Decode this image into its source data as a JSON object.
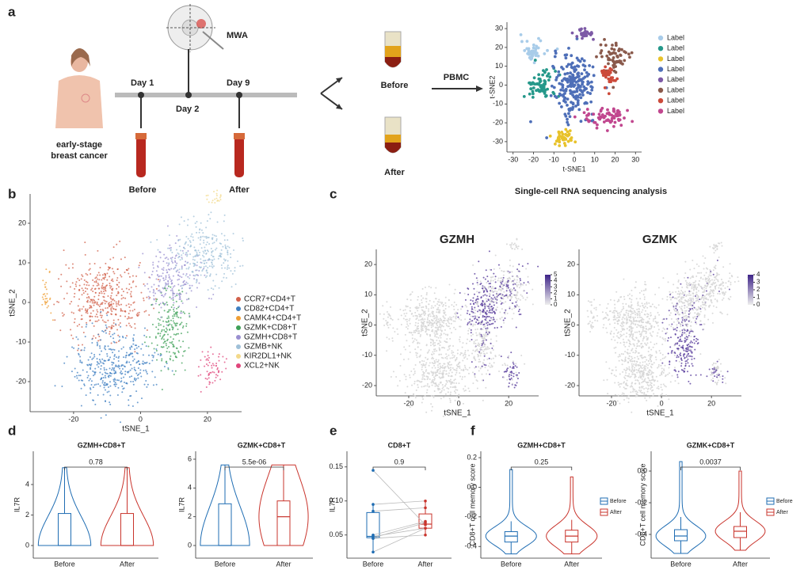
{
  "a": {
    "label": "a",
    "device": "MWA",
    "days": [
      "Day 1",
      "Day 2",
      "Day 9"
    ],
    "patient": [
      "early-stage",
      "breast cancer"
    ],
    "draws": [
      "Before",
      "After"
    ],
    "tubes": [
      "Before",
      "After"
    ],
    "process": "PBMC",
    "tsne": {
      "xlabel": "t-SNE1",
      "ylabel": "t-SNE2",
      "xlim": [
        -33,
        33
      ],
      "ylim": [
        -35.5,
        33.4
      ],
      "xticks": [
        -30,
        -20,
        -10,
        0,
        10,
        20,
        30
      ],
      "yticks": [
        30,
        20,
        10,
        0,
        -10,
        -20,
        -30
      ],
      "legend": [
        {
          "name": "Label",
          "color": "#a8cce9"
        },
        {
          "name": "Label",
          "color": "#25988a"
        },
        {
          "name": "Label",
          "color": "#e8c22a"
        },
        {
          "name": "Label",
          "color": "#4e6fb8"
        },
        {
          "name": "Label",
          "color": "#7d5aa6"
        },
        {
          "name": "Label",
          "color": "#8a5a4c"
        },
        {
          "name": "Label",
          "color": "#cc4a3a"
        },
        {
          "name": "Label",
          "color": "#c1478f"
        }
      ]
    },
    "caption": "Single-cell RNA sequencing analysis"
  },
  "b": {
    "label": "b",
    "xlabel": "tSNE_1",
    "ylabel": "tSNE_2",
    "xlim": [
      -33,
      30.2
    ],
    "ylim": [
      -27.6,
      27.4
    ],
    "xticks": [
      -20,
      0,
      20
    ],
    "yticks": [
      20,
      10,
      0,
      -10,
      -20
    ],
    "legend": [
      {
        "name": "CCR7+CD4+T",
        "color": "#d2614b"
      },
      {
        "name": "CD82+CD4+T",
        "color": "#3f7fc1"
      },
      {
        "name": "CAMK4+CD4+T",
        "color": "#ef9f35"
      },
      {
        "name": "GZMK+CD8+T",
        "color": "#3ea057"
      },
      {
        "name": "GZMH+CD8+T",
        "color": "#9a8fd0"
      },
      {
        "name": "GZMB+NK",
        "color": "#9fc0d8"
      },
      {
        "name": "KIR2DL1+NK",
        "color": "#f3d98a"
      },
      {
        "name": "XCL2+NK",
        "color": "#e0457b"
      }
    ]
  },
  "c": {
    "label": "c",
    "plots": [
      {
        "title": "GZMH",
        "xlabel": "tSNE_1",
        "ylabel": "tSNE_2",
        "xlim": [
          -33,
          32
        ],
        "ylim": [
          -23.4,
          25
        ],
        "xticks": [
          -20,
          0,
          20
        ],
        "yticks": [
          20,
          10,
          0,
          -10,
          -20
        ],
        "colorbar": [
          5,
          4,
          3,
          2,
          1,
          0
        ]
      },
      {
        "title": "GZMK",
        "xlabel": "tSNE_1",
        "ylabel": "tSNE_2",
        "xlim": [
          -33,
          32
        ],
        "ylim": [
          -23.4,
          25
        ],
        "xticks": [
          -20,
          0,
          20
        ],
        "yticks": [
          20,
          10,
          0,
          -10,
          -20
        ],
        "colorbar": [
          4,
          3,
          2,
          1,
          0
        ]
      }
    ]
  },
  "d": {
    "label": "d",
    "plots": [
      {
        "title": "GZMH+CD8+T",
        "ylabel": "IL7R",
        "ylim": [
          -0.83,
          6.18
        ],
        "yticks": [
          0,
          2,
          4
        ],
        "groups": [
          "Before",
          "After"
        ],
        "colors": [
          "#1f6db3",
          "#c9342c"
        ],
        "boxes": [
          {
            "low": 0,
            "q1": 0,
            "median": 0,
            "q3": 2.1,
            "high": 5.1
          },
          {
            "low": 0,
            "q1": 0,
            "median": 0,
            "q3": 2.1,
            "high": 5.1
          }
        ],
        "pvalue": "0.78"
      },
      {
        "title": "GZMK+CD8+T",
        "ylabel": "IL7R",
        "ylim": [
          -0.88,
          6.55
        ],
        "yticks": [
          0,
          2,
          4,
          6
        ],
        "groups": [
          "Before",
          "After"
        ],
        "colors": [
          "#1f6db3",
          "#c9342c"
        ],
        "boxes": [
          {
            "low": 0,
            "q1": 0,
            "median": 0,
            "q3": 2.9,
            "high": 5.6
          },
          {
            "low": 0,
            "q1": 0,
            "median": 2,
            "q3": 3.1,
            "high": 5.6
          }
        ],
        "pvalue": "5.5e-06"
      }
    ]
  },
  "e": {
    "label": "e",
    "title": "CD8+T",
    "ylabel": "IL7R",
    "ylim": [
      0.016,
      0.173
    ],
    "yticks": [
      0.15,
      {
        "value": 0.1,
        "label": "0.10"
      },
      0.05
    ],
    "groups": [
      "Before",
      "After"
    ],
    "colors": [
      "#1f6db3",
      "#c9342c"
    ],
    "boxes": [
      {
        "low": 0.025,
        "q1": 0.046,
        "median": 0.048,
        "q3": 0.083,
        "high": 0.095
      },
      {
        "low": 0.05,
        "q1": 0.06,
        "median": 0.066,
        "q3": 0.081,
        "high": 0.1
      }
    ],
    "before": [
      0.145,
      0.095,
      0.085,
      0.05,
      0.048,
      0.046,
      0.045,
      0.025
    ],
    "after": [
      0.065,
      0.1,
      0.09,
      0.07,
      0.06,
      0.068,
      0.05,
      0.06
    ],
    "pvalue": "0.9"
  },
  "f": {
    "label": "f",
    "plots": [
      {
        "title": "GZMH+CD8+T",
        "ylabel": "CD8+T cell memory score",
        "ylim": [
          -0.479,
          0.243
        ],
        "yticks": [
          0.2,
          {
            "value": 0,
            "label": "0.0"
          },
          -0.2,
          -0.4
        ],
        "groups": [
          "Before",
          "After"
        ],
        "colors": [
          "#1f6db3",
          "#c9342c"
        ],
        "boxes": [
          {
            "low": -0.45,
            "q1": -0.37,
            "median": -0.33,
            "q3": -0.3,
            "high": -0.23,
            "max": 0.12
          },
          {
            "low": -0.45,
            "q1": -0.37,
            "median": -0.33,
            "q3": -0.29,
            "high": -0.22,
            "max": 0.07
          }
        ],
        "pvalue": "0.25",
        "legend": [
          "Before",
          "After"
        ]
      },
      {
        "title": "GZMK+CD8+T",
        "ylabel": "CD8+T cell memory score",
        "ylim": [
          -0.55,
          0.125
        ],
        "yticks": [
          {
            "value": 0,
            "label": "0.0"
          },
          -0.2,
          -0.4
        ],
        "groups": [
          "Before",
          "After"
        ],
        "colors": [
          "#1f6db3",
          "#c9342c"
        ],
        "boxes": [
          {
            "low": -0.52,
            "q1": -0.44,
            "median": -0.41,
            "q3": -0.37,
            "high": -0.29,
            "max": 0.06
          },
          {
            "low": -0.5,
            "q1": -0.42,
            "median": -0.38,
            "q3": -0.35,
            "high": -0.26,
            "max": 0.0
          }
        ],
        "pvalue": "0.0037",
        "legend": [
          "Before",
          "After"
        ]
      }
    ]
  }
}
